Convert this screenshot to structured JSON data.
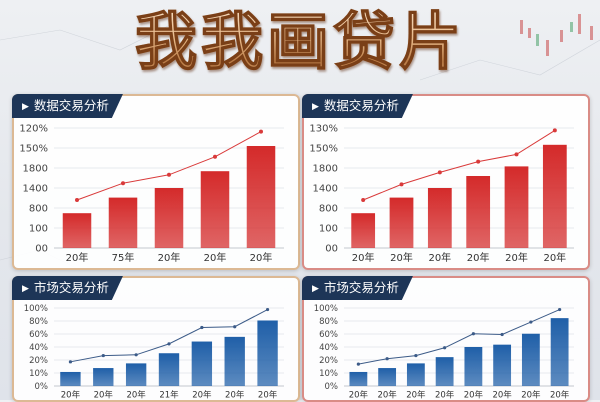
{
  "page": {
    "title": "我我画贷片"
  },
  "chart_data": [
    {
      "type": "bar",
      "title": "数据交易分析",
      "theme": "red",
      "border": "#dcb994",
      "bar_color": "#d42a2a",
      "line_color": "#d93a3a",
      "categories": [
        "20年",
        "75年",
        "20年",
        "20年",
        "20年"
      ],
      "yticks": [
        "120%",
        "150%",
        "1800",
        "1400",
        "800",
        "100",
        "00"
      ],
      "bar_values": [
        0.29,
        0.42,
        0.5,
        0.64,
        0.85
      ],
      "line_values": [
        0.4,
        0.54,
        0.61,
        0.76,
        0.97
      ],
      "ylim": [
        0,
        1
      ]
    },
    {
      "type": "bar",
      "title": "数据交易分析",
      "theme": "red",
      "border": "#d98c86",
      "bar_color": "#d42a2a",
      "line_color": "#d93a3a",
      "categories": [
        "20年",
        "20年",
        "20年",
        "20年",
        "20年",
        "20年"
      ],
      "yticks": [
        "130%",
        "150%",
        "1800",
        "1400",
        "800",
        "100",
        "00"
      ],
      "bar_values": [
        0.29,
        0.42,
        0.5,
        0.6,
        0.68,
        0.86
      ],
      "line_values": [
        0.4,
        0.53,
        0.63,
        0.72,
        0.78,
        0.98
      ],
      "ylim": [
        0,
        1
      ]
    },
    {
      "type": "bar",
      "title": "市场交易分析",
      "theme": "blue",
      "border": "#dcb994",
      "bar_color": "#1f5fa8",
      "line_color": "#3c5b88",
      "categories": [
        "20年",
        "20年",
        "20年",
        "21年",
        "20年",
        "20年",
        "20年"
      ],
      "yticks": [
        "100%",
        "80%",
        "60%",
        "40%",
        "20%",
        "10%",
        "0%"
      ],
      "bar_values": [
        0.18,
        0.23,
        0.29,
        0.42,
        0.57,
        0.63,
        0.84
      ],
      "line_values": [
        0.31,
        0.39,
        0.4,
        0.54,
        0.75,
        0.76,
        0.98
      ],
      "ylim": [
        0,
        1
      ]
    },
    {
      "type": "bar",
      "title": "市场交易分析",
      "theme": "blue",
      "border": "#d98c86",
      "bar_color": "#1f5fa8",
      "line_color": "#3c5b88",
      "categories": [
        "20年",
        "20年",
        "20年",
        "20年",
        "20年",
        "20年",
        "20年",
        "20年"
      ],
      "yticks": [
        "100%",
        "80%",
        "60%",
        "40%",
        "20%",
        "10%",
        "0%"
      ],
      "bar_values": [
        0.18,
        0.23,
        0.29,
        0.37,
        0.5,
        0.53,
        0.67,
        0.87
      ],
      "line_values": [
        0.28,
        0.35,
        0.39,
        0.49,
        0.67,
        0.66,
        0.82,
        0.98
      ],
      "ylim": [
        0,
        1
      ]
    }
  ]
}
